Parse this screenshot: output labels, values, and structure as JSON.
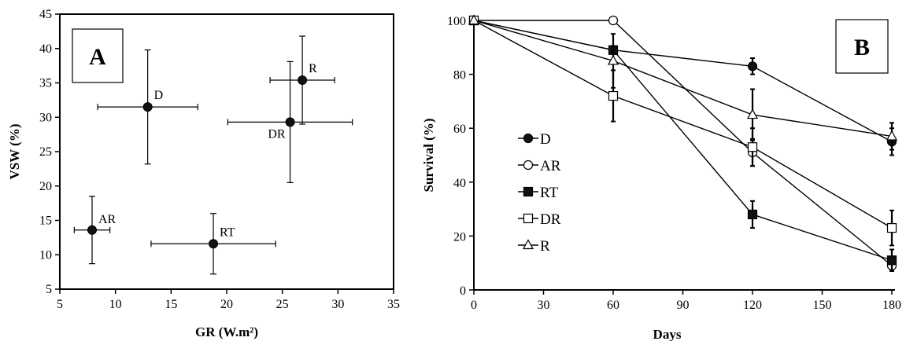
{
  "chart_data": [
    {
      "type": "scatter",
      "panel_label": "A",
      "xlabel": "GR (W.m²)",
      "ylabel": "VSW (%)",
      "xlim": [
        5,
        35
      ],
      "ylim": [
        5,
        45
      ],
      "x_ticks": [
        "5",
        "10",
        "15",
        "20",
        "25",
        "30",
        "35"
      ],
      "y_ticks": [
        "5",
        "10",
        "15",
        "20",
        "25",
        "30",
        "35",
        "40",
        "45"
      ],
      "points": [
        {
          "label": "D",
          "x": 12.9,
          "y": 31.5,
          "xerr": 4.5,
          "yerr": 8.3
        },
        {
          "label": "R",
          "x": 26.8,
          "y": 35.4,
          "xerr": 2.9,
          "yerr": 6.4
        },
        {
          "label": "DR",
          "x": 25.7,
          "y": 29.3,
          "xerr": 5.6,
          "yerr": 8.8
        },
        {
          "label": "AR",
          "x": 7.9,
          "y": 13.6,
          "xerr": 1.6,
          "yerr": 4.9
        },
        {
          "label": "RT",
          "x": 18.8,
          "y": 11.6,
          "xerr": 5.6,
          "yerr": 4.4
        }
      ]
    },
    {
      "type": "line",
      "panel_label": "B",
      "xlabel": "Days",
      "ylabel": "Survival (%)",
      "xlim": [
        0,
        180
      ],
      "ylim": [
        0,
        100
      ],
      "x": [
        0,
        60,
        120,
        180
      ],
      "x_ticks": [
        "0",
        "30",
        "60",
        "90",
        "120",
        "150",
        "180"
      ],
      "y_ticks": [
        "0",
        "20",
        "40",
        "60",
        "80",
        "100"
      ],
      "series": [
        {
          "name": "D",
          "marker": "circle-filled",
          "values": [
            100,
            89,
            83,
            55
          ],
          "err": [
            0,
            1.5,
            3,
            5
          ]
        },
        {
          "name": "AR",
          "marker": "circle-open",
          "values": [
            100,
            100,
            51,
            9
          ],
          "err": [
            0,
            0,
            5,
            2
          ]
        },
        {
          "name": "RT",
          "marker": "square-filled",
          "values": [
            100,
            89,
            28,
            11
          ],
          "err": [
            0,
            1.5,
            5,
            4
          ]
        },
        {
          "name": "DR",
          "marker": "square-open",
          "values": [
            100,
            72,
            53,
            23
          ],
          "err": [
            0,
            9.5,
            7,
            6.5
          ]
        },
        {
          "name": "R",
          "marker": "triangle-open",
          "values": [
            100,
            85,
            65,
            57
          ],
          "err": [
            0,
            10,
            9.5,
            5
          ]
        }
      ],
      "legend_position": "left-middle"
    }
  ]
}
